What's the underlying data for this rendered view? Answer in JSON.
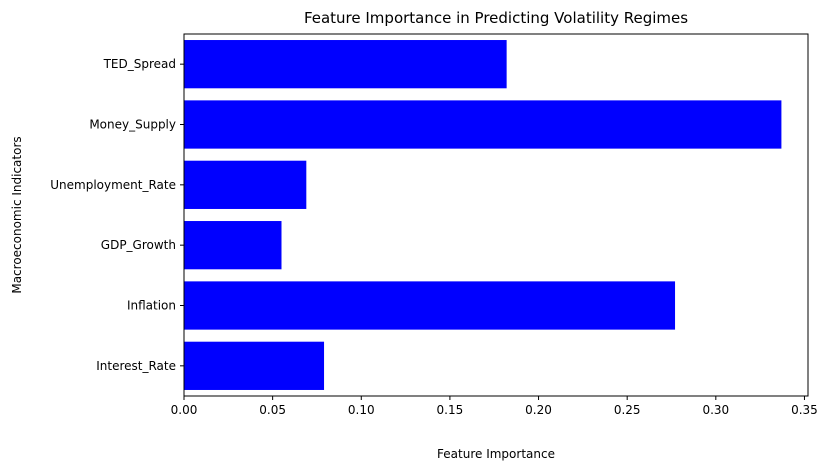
{
  "chart_data": {
    "type": "bar",
    "orientation": "horizontal",
    "title": "Feature Importance in Predicting Volatility Regimes",
    "xlabel": "Feature Importance",
    "ylabel": "Macroeconomic Indicators",
    "categories": [
      "Interest_Rate",
      "Inflation",
      "GDP_Growth",
      "Unemployment_Rate",
      "Money_Supply",
      "TED_Spread"
    ],
    "values": [
      0.079,
      0.277,
      0.055,
      0.069,
      0.337,
      0.182
    ],
    "xlim": [
      0,
      0.352
    ],
    "xticks": [
      "0.00",
      "0.05",
      "0.10",
      "0.15",
      "0.20",
      "0.25",
      "0.30",
      "0.35"
    ],
    "bar_color": "#0000ff",
    "grid": false,
    "legend": false
  }
}
